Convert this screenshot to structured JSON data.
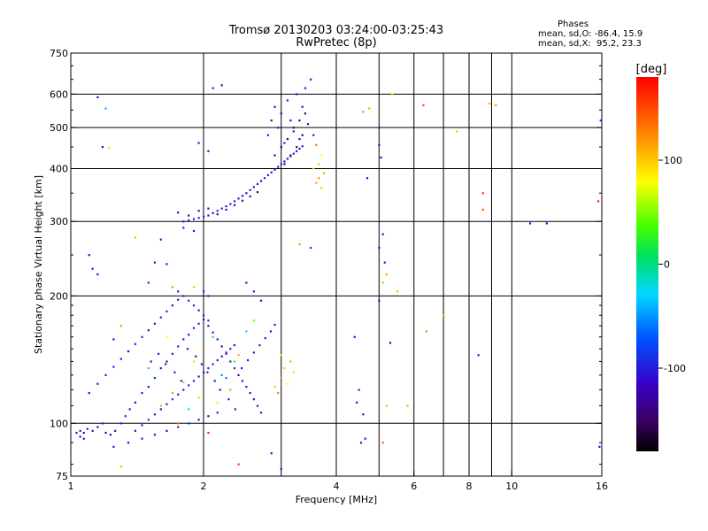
{
  "chart_data": {
    "type": "scatter",
    "title": "Tromsø 20130203 03:24:00-03:25:43",
    "subtitle": "RwPretec (8p)",
    "xlabel": "Frequency [MHz]",
    "ylabel": "Stationary phase Virtual Height [km]",
    "x_scale": "log",
    "y_scale": "log",
    "xlim": [
      1,
      16
    ],
    "ylim": [
      75,
      750
    ],
    "x_ticks": [
      1,
      2,
      4,
      6,
      8,
      10,
      16
    ],
    "x_tick_labels": [
      "1",
      "2",
      "4",
      "6",
      "8",
      "10",
      "16"
    ],
    "y_ticks": [
      75,
      100,
      200,
      300,
      400,
      500,
      600,
      750
    ],
    "y_tick_labels": [
      "75",
      "100",
      "200",
      "300",
      "400",
      "500",
      "600",
      "750"
    ],
    "grid": true,
    "colorbar": {
      "label": "[deg]",
      "range": [
        -180,
        180
      ],
      "ticks": [
        -100,
        0,
        100
      ],
      "tick_labels": [
        "-100",
        "0",
        "100"
      ]
    },
    "stats": {
      "heading": "Phases",
      "line_o": "mean, sd,O: -86.4, 15.9",
      "line_x": "mean, sd,X:  95.2, 23.3"
    },
    "points": [
      [
        1.03,
        95,
        -110
      ],
      [
        1.05,
        96,
        -105
      ],
      [
        1.07,
        95,
        -115
      ],
      [
        1.09,
        97,
        -100
      ],
      [
        1.12,
        96,
        -110
      ],
      [
        1.15,
        98,
        -105
      ],
      [
        1.18,
        100,
        -100
      ],
      [
        1.2,
        95,
        -120
      ],
      [
        1.23,
        94,
        -110
      ],
      [
        1.26,
        96,
        -105
      ],
      [
        1.3,
        100,
        -100
      ],
      [
        1.33,
        104,
        -95
      ],
      [
        1.36,
        108,
        -100
      ],
      [
        1.4,
        112,
        -110
      ],
      [
        1.45,
        118,
        -105
      ],
      [
        1.5,
        122,
        -100
      ],
      [
        1.55,
        128,
        -95
      ],
      [
        1.6,
        135,
        -105
      ],
      [
        1.65,
        140,
        -110
      ],
      [
        1.7,
        146,
        -100
      ],
      [
        1.75,
        152,
        -95
      ],
      [
        1.8,
        158,
        -105
      ],
      [
        1.85,
        162,
        -110
      ],
      [
        1.9,
        168,
        -100
      ],
      [
        1.95,
        172,
        -95
      ],
      [
        2.0,
        176,
        -105
      ],
      [
        2.05,
        170,
        -100
      ],
      [
        2.1,
        164,
        -95
      ],
      [
        2.15,
        158,
        -105
      ],
      [
        2.2,
        152,
        -110
      ],
      [
        2.25,
        146,
        -100
      ],
      [
        2.3,
        140,
        -95
      ],
      [
        2.35,
        135,
        -105
      ],
      [
        2.4,
        130,
        -110
      ],
      [
        2.45,
        126,
        -100
      ],
      [
        2.5,
        122,
        -95
      ],
      [
        2.55,
        118,
        -105
      ],
      [
        2.6,
        114,
        -110
      ],
      [
        2.65,
        110,
        -100
      ],
      [
        2.7,
        106,
        -95
      ],
      [
        1.1,
        118,
        -110
      ],
      [
        1.15,
        124,
        -105
      ],
      [
        1.2,
        130,
        -100
      ],
      [
        1.25,
        136,
        -95
      ],
      [
        1.3,
        142,
        -105
      ],
      [
        1.35,
        148,
        -110
      ],
      [
        1.4,
        154,
        -100
      ],
      [
        1.45,
        160,
        -95
      ],
      [
        1.5,
        166,
        -105
      ],
      [
        1.55,
        172,
        -110
      ],
      [
        1.6,
        178,
        -100
      ],
      [
        1.65,
        184,
        -95
      ],
      [
        1.7,
        190,
        -105
      ],
      [
        1.75,
        196,
        -110
      ],
      [
        1.8,
        200,
        -100
      ],
      [
        1.85,
        195,
        -95
      ],
      [
        1.9,
        190,
        -105
      ],
      [
        1.95,
        185,
        -110
      ],
      [
        2.0,
        180,
        -100
      ],
      [
        2.05,
        175,
        -95
      ],
      [
        1.4,
        96,
        -105
      ],
      [
        1.45,
        99,
        -100
      ],
      [
        1.5,
        102,
        -95
      ],
      [
        1.55,
        105,
        -105
      ],
      [
        1.6,
        108,
        -110
      ],
      [
        1.65,
        111,
        -100
      ],
      [
        1.7,
        114,
        -95
      ],
      [
        1.75,
        117,
        -105
      ],
      [
        1.8,
        120,
        -110
      ],
      [
        1.85,
        123,
        -100
      ],
      [
        1.9,
        126,
        -95
      ],
      [
        1.95,
        129,
        -105
      ],
      [
        2.0,
        132,
        -110
      ],
      [
        2.05,
        135,
        -100
      ],
      [
        2.1,
        138,
        -95
      ],
      [
        2.15,
        141,
        -105
      ],
      [
        2.2,
        144,
        -110
      ],
      [
        2.25,
        147,
        -100
      ],
      [
        2.3,
        150,
        -95
      ],
      [
        2.35,
        153,
        -105
      ],
      [
        1.52,
        140,
        -100
      ],
      [
        1.58,
        146,
        -105
      ],
      [
        1.64,
        138,
        -110
      ],
      [
        1.72,
        132,
        -100
      ],
      [
        1.78,
        126,
        -95
      ],
      [
        1.84,
        150,
        -105
      ],
      [
        1.92,
        144,
        -110
      ],
      [
        1.98,
        138,
        -100
      ],
      [
        2.04,
        132,
        -95
      ],
      [
        2.12,
        126,
        -105
      ],
      [
        2.18,
        120,
        -110
      ],
      [
        2.28,
        114,
        -100
      ],
      [
        2.36,
        108,
        -95
      ],
      [
        2.44,
        135,
        -105
      ],
      [
        2.52,
        141,
        -110
      ],
      [
        2.6,
        147,
        -100
      ],
      [
        2.68,
        153,
        -95
      ],
      [
        2.76,
        159,
        -105
      ],
      [
        2.84,
        165,
        -110
      ],
      [
        2.9,
        171,
        -100
      ],
      [
        1.6,
        110,
        40
      ],
      [
        1.7,
        118,
        120
      ],
      [
        1.8,
        125,
        100
      ],
      [
        1.9,
        140,
        60
      ],
      [
        2.0,
        150,
        130
      ],
      [
        2.1,
        160,
        20
      ],
      [
        2.2,
        130,
        -50
      ],
      [
        2.3,
        120,
        40
      ],
      [
        2.4,
        145,
        110
      ],
      [
        2.5,
        165,
        -20
      ],
      [
        2.6,
        175,
        50
      ],
      [
        1.5,
        135,
        -10
      ],
      [
        1.65,
        160,
        80
      ],
      [
        1.75,
        100,
        140
      ],
      [
        1.85,
        108,
        -30
      ],
      [
        1.95,
        115,
        60
      ],
      [
        2.05,
        95,
        170
      ],
      [
        2.15,
        112,
        90
      ],
      [
        2.25,
        128,
        -60
      ],
      [
        2.35,
        140,
        30
      ],
      [
        1.25,
        88,
        -100
      ],
      [
        1.35,
        90,
        -110
      ],
      [
        1.45,
        92,
        -95
      ],
      [
        1.55,
        94,
        -105
      ],
      [
        1.65,
        96,
        -115
      ],
      [
        1.75,
        98,
        -100
      ],
      [
        1.85,
        100,
        -90
      ],
      [
        1.95,
        102,
        -105
      ],
      [
        2.05,
        104,
        -110
      ],
      [
        2.15,
        106,
        -95
      ],
      [
        3.0,
        128,
        120
      ],
      [
        3.05,
        135,
        100
      ],
      [
        3.1,
        124,
        80
      ],
      [
        2.95,
        118,
        130
      ],
      [
        3.15,
        140,
        110
      ],
      [
        3.2,
        132,
        90
      ],
      [
        3.0,
        145,
        60
      ],
      [
        2.9,
        122,
        100
      ],
      [
        1.8,
        300,
        -100
      ],
      [
        1.85,
        302,
        -105
      ],
      [
        1.9,
        304,
        -110
      ],
      [
        1.95,
        306,
        -100
      ],
      [
        2.0,
        308,
        -95
      ],
      [
        2.05,
        310,
        -105
      ],
      [
        2.1,
        314,
        -110
      ],
      [
        2.15,
        318,
        -100
      ],
      [
        2.2,
        322,
        -95
      ],
      [
        2.25,
        326,
        -105
      ],
      [
        2.3,
        330,
        -110
      ],
      [
        2.35,
        335,
        -100
      ],
      [
        2.4,
        340,
        -95
      ],
      [
        2.45,
        345,
        -105
      ],
      [
        2.5,
        350,
        -110
      ],
      [
        2.55,
        356,
        -100
      ],
      [
        2.6,
        362,
        -95
      ],
      [
        2.65,
        368,
        -105
      ],
      [
        2.7,
        374,
        -110
      ],
      [
        2.75,
        380,
        -100
      ],
      [
        2.8,
        386,
        -95
      ],
      [
        2.85,
        392,
        -105
      ],
      [
        2.9,
        398,
        -110
      ],
      [
        2.95,
        404,
        -100
      ],
      [
        3.0,
        410,
        -95
      ],
      [
        3.05,
        416,
        -105
      ],
      [
        3.1,
        422,
        -110
      ],
      [
        3.15,
        428,
        -100
      ],
      [
        3.2,
        434,
        -95
      ],
      [
        3.25,
        440,
        -105
      ],
      [
        3.3,
        446,
        -110
      ],
      [
        3.35,
        452,
        -100
      ],
      [
        1.75,
        315,
        -120
      ],
      [
        1.85,
        310,
        -125
      ],
      [
        1.95,
        318,
        -118
      ],
      [
        2.05,
        322,
        -122
      ],
      [
        2.15,
        312,
        -128
      ],
      [
        2.25,
        320,
        -120
      ],
      [
        2.35,
        328,
        -124
      ],
      [
        2.45,
        336,
        -118
      ],
      [
        2.55,
        344,
        -122
      ],
      [
        2.65,
        352,
        -126
      ],
      [
        2.8,
        480,
        -100
      ],
      [
        2.85,
        520,
        -110
      ],
      [
        2.9,
        560,
        -105
      ],
      [
        2.95,
        500,
        -100
      ],
      [
        3.0,
        540,
        -115
      ],
      [
        3.05,
        460,
        -95
      ],
      [
        3.1,
        580,
        -100
      ],
      [
        3.15,
        520,
        -110
      ],
      [
        3.2,
        490,
        -105
      ],
      [
        3.25,
        600,
        -100
      ],
      [
        3.3,
        470,
        -115
      ],
      [
        3.35,
        560,
        -95
      ],
      [
        3.4,
        620,
        -100
      ],
      [
        3.45,
        510,
        -110
      ],
      [
        3.5,
        650,
        -105
      ],
      [
        3.55,
        480,
        -100
      ],
      [
        2.9,
        430,
        -140
      ],
      [
        3.0,
        450,
        -145
      ],
      [
        3.1,
        470,
        -150
      ],
      [
        3.2,
        500,
        -140
      ],
      [
        3.3,
        520,
        -145
      ],
      [
        3.4,
        540,
        -150
      ],
      [
        3.05,
        410,
        -135
      ],
      [
        3.15,
        430,
        -140
      ],
      [
        3.25,
        450,
        -145
      ],
      [
        3.35,
        480,
        -150
      ],
      [
        3.6,
        370,
        110
      ],
      [
        3.65,
        380,
        120
      ],
      [
        3.7,
        360,
        100
      ],
      [
        3.75,
        390,
        115
      ],
      [
        3.55,
        400,
        90
      ],
      [
        3.65,
        410,
        105
      ],
      [
        3.6,
        455,
        130
      ],
      [
        3.7,
        430,
        80
      ],
      [
        1.8,
        290,
        -100
      ],
      [
        1.9,
        285,
        -105
      ],
      [
        2.1,
        620,
        -100
      ],
      [
        2.2,
        630,
        -105
      ],
      [
        1.95,
        460,
        -100
      ],
      [
        2.05,
        440,
        -105
      ],
      [
        1.15,
        590,
        -110
      ],
      [
        1.2,
        555,
        -40
      ],
      [
        1.18,
        450,
        -115
      ],
      [
        1.22,
        448,
        60
      ],
      [
        1.15,
        225,
        -105
      ],
      [
        1.1,
        250,
        -110
      ],
      [
        1.12,
        232,
        -100
      ],
      [
        1.3,
        170,
        120
      ],
      [
        1.25,
        158,
        -110
      ],
      [
        1.4,
        275,
        110
      ],
      [
        1.6,
        272,
        -100
      ],
      [
        1.55,
        240,
        -105
      ],
      [
        1.65,
        238,
        -110
      ],
      [
        1.5,
        215,
        -100
      ],
      [
        1.7,
        210,
        120
      ],
      [
        1.75,
        205,
        -110
      ],
      [
        1.9,
        210,
        50
      ],
      [
        2.0,
        205,
        -100
      ],
      [
        2.05,
        200,
        -95
      ],
      [
        4.4,
        160,
        -110
      ],
      [
        4.45,
        112,
        -105
      ],
      [
        4.5,
        120,
        -100
      ],
      [
        4.6,
        105,
        -110
      ],
      [
        4.55,
        90,
        -100
      ],
      [
        4.65,
        92,
        -95
      ],
      [
        4.7,
        380,
        -110
      ],
      [
        4.6,
        545,
        120
      ],
      [
        4.75,
        555,
        110
      ],
      [
        5.0,
        500,
        -100
      ],
      [
        5.0,
        455,
        -110
      ],
      [
        5.05,
        425,
        -115
      ],
      [
        5.1,
        280,
        -100
      ],
      [
        5.0,
        260,
        -110
      ],
      [
        5.15,
        240,
        -105
      ],
      [
        5.2,
        225,
        120
      ],
      [
        5.1,
        215,
        110
      ],
      [
        5.0,
        195,
        -110
      ],
      [
        5.3,
        155,
        -120
      ],
      [
        5.1,
        90,
        140
      ],
      [
        5.2,
        110,
        110
      ],
      [
        5.35,
        600,
        100
      ],
      [
        5.5,
        205,
        110
      ],
      [
        5.8,
        110,
        110
      ],
      [
        6.3,
        565,
        150
      ],
      [
        6.4,
        165,
        130
      ],
      [
        7.0,
        180,
        110
      ],
      [
        7.5,
        490,
        100
      ],
      [
        8.4,
        145,
        -110
      ],
      [
        8.6,
        320,
        140
      ],
      [
        8.6,
        350,
        160
      ],
      [
        8.9,
        570,
        110
      ],
      [
        9.2,
        565,
        120
      ],
      [
        11.0,
        297,
        -100
      ],
      [
        12.0,
        297,
        -120
      ],
      [
        15.7,
        335,
        170
      ],
      [
        15.8,
        88,
        -110
      ],
      [
        15.9,
        520,
        -90
      ],
      [
        3.3,
        265,
        120
      ],
      [
        3.5,
        260,
        -100
      ],
      [
        2.5,
        215,
        -110
      ],
      [
        2.6,
        205,
        -100
      ],
      [
        2.7,
        195,
        -105
      ],
      [
        2.85,
        85,
        -110
      ],
      [
        3.0,
        78,
        -100
      ],
      [
        2.4,
        80,
        160
      ],
      [
        1.3,
        79,
        110
      ],
      [
        1.05,
        93,
        -110
      ],
      [
        1.07,
        92,
        -100
      ]
    ]
  }
}
